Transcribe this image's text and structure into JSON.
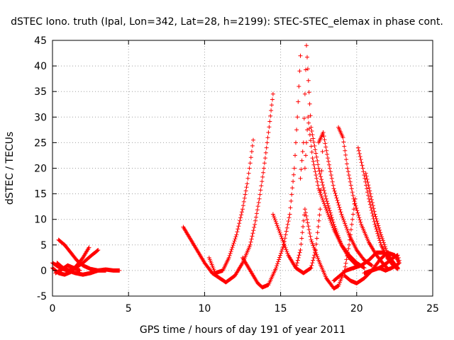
{
  "chart_data": {
    "type": "scatter",
    "title": "dSTEC Iono. truth (Ipal, Lon=342, Lat=28, h=2199): STEC-STEC_elemax in phase cont.",
    "xlabel": "GPS time / hours of day 191 of year 2011",
    "ylabel": "dSTEC  / TECUs",
    "xlim": [
      0,
      25
    ],
    "ylim": [
      -5,
      45
    ],
    "xticks": [
      0,
      5,
      10,
      15,
      20,
      25
    ],
    "yticks": [
      -5,
      0,
      5,
      10,
      15,
      20,
      25,
      30,
      35,
      40,
      45
    ],
    "grid": true,
    "marker": "+",
    "series_color": "#ff0000",
    "series": [
      {
        "x": [
          0.0,
          0.5,
          1.0,
          1.5,
          2.0,
          2.5,
          3.0,
          3.5,
          4.0,
          4.4
        ],
        "y": [
          1.5,
          0.5,
          0.0,
          -0.5,
          -0.8,
          -0.5,
          0.0,
          0.2,
          0.0,
          0.0
        ]
      },
      {
        "x": [
          0.0,
          0.4,
          0.8,
          1.2,
          1.6,
          2.0,
          2.4
        ],
        "y": [
          0.5,
          -0.5,
          -0.8,
          -0.3,
          1.0,
          2.5,
          4.5
        ]
      },
      {
        "x": [
          0.4,
          0.8,
          1.2,
          1.6,
          2.0,
          2.5,
          3.0,
          3.5
        ],
        "y": [
          6.0,
          5.0,
          3.5,
          2.0,
          1.0,
          0.3,
          0.0,
          0.0
        ]
      },
      {
        "x": [
          0.3,
          0.7,
          1.1,
          1.5,
          2.0,
          2.5,
          3.0
        ],
        "y": [
          1.5,
          0.5,
          0.0,
          0.5,
          1.5,
          2.8,
          4.0
        ]
      },
      {
        "x": [
          0.2,
          0.6,
          1.0,
          1.4,
          1.8
        ],
        "y": [
          -0.5,
          0.2,
          1.0,
          0.5,
          0.0
        ]
      },
      {
        "x": [
          8.6,
          9.0,
          9.5,
          10.0,
          10.5,
          11.0,
          11.4,
          12.0,
          12.5,
          13.0,
          13.3,
          13.6,
          13.9,
          14.2,
          14.5
        ],
        "y": [
          8.5,
          6.5,
          4.0,
          1.5,
          -0.5,
          -1.5,
          -2.3,
          -1.0,
          1.5,
          5.0,
          9.0,
          14.0,
          20.0,
          27.0,
          34.5
        ]
      },
      {
        "x": [
          10.3,
          10.7,
          11.2,
          11.6,
          12.1,
          12.5,
          12.8,
          13.0,
          13.2
        ],
        "y": [
          2.5,
          -0.5,
          0.0,
          2.5,
          7.0,
          12.0,
          17.0,
          21.0,
          25.5
        ]
      },
      {
        "x": [
          12.5,
          13.0,
          13.5,
          13.8,
          14.2,
          14.7,
          15.2,
          15.6,
          15.9,
          16.1,
          16.3
        ],
        "y": [
          2.5,
          0.0,
          -2.5,
          -3.3,
          -2.8,
          0.5,
          5.0,
          11.0,
          20.0,
          30.0,
          42.0
        ]
      },
      {
        "x": [
          14.5,
          15.0,
          15.5,
          16.0,
          16.5,
          17.0,
          17.3,
          17.6,
          17.8
        ],
        "y": [
          11.0,
          7.0,
          3.0,
          0.5,
          -0.5,
          0.5,
          4.0,
          12.0,
          27.0
        ]
      },
      {
        "x": [
          16.0,
          16.3,
          16.6,
          17.0,
          17.5,
          18.0,
          18.5,
          18.8,
          19.2,
          19.5,
          19.9
        ],
        "y": [
          0.5,
          4.0,
          12.0,
          6.0,
          2.0,
          -1.5,
          -3.5,
          -3.0,
          0.0,
          5.0,
          14.0
        ]
      },
      {
        "x": [
          16.3,
          16.5,
          16.7,
          17.0,
          17.5,
          18.0,
          18.5,
          19.0,
          19.5,
          20.0
        ],
        "y": [
          18.0,
          25.0,
          44.0,
          28.0,
          20.0,
          14.0,
          9.0,
          5.0,
          2.5,
          1.0
        ]
      },
      {
        "x": [
          16.6,
          16.8,
          17.1,
          17.5,
          18.0,
          18.5,
          19.0,
          19.5,
          20.0,
          20.5
        ],
        "y": [
          20.0,
          30.0,
          22.0,
          16.0,
          12.0,
          8.0,
          5.0,
          3.0,
          1.5,
          0.5
        ]
      },
      {
        "x": [
          17.5,
          17.8,
          18.1,
          18.5,
          19.0,
          19.5,
          20.0,
          20.5,
          21.0
        ],
        "y": [
          25.0,
          27.0,
          22.0,
          16.0,
          11.0,
          7.0,
          4.0,
          2.0,
          1.0
        ]
      },
      {
        "x": [
          18.8,
          19.1,
          19.4,
          19.8,
          20.3,
          20.8,
          21.3,
          21.7,
          22.0
        ],
        "y": [
          28.0,
          26.0,
          20.0,
          14.0,
          9.0,
          5.5,
          3.0,
          1.5,
          0.5
        ]
      },
      {
        "x": [
          18.5,
          18.9,
          19.3,
          19.8,
          20.3,
          20.8,
          21.3,
          21.8,
          22.3,
          22.7
        ],
        "y": [
          -2.0,
          -1.0,
          0.0,
          0.5,
          1.0,
          2.0,
          3.5,
          3.5,
          2.0,
          0.5
        ]
      },
      {
        "x": [
          19.2,
          19.6,
          20.0,
          20.5,
          21.0,
          21.5,
          22.0,
          22.5,
          22.8
        ],
        "y": [
          -1.0,
          -2.0,
          -2.5,
          -1.5,
          0.0,
          2.0,
          3.5,
          3.0,
          1.5
        ]
      },
      {
        "x": [
          20.1,
          20.4,
          20.8,
          21.2,
          21.6,
          22.0,
          22.4,
          22.7
        ],
        "y": [
          24.0,
          20.0,
          14.0,
          9.0,
          5.0,
          2.5,
          1.0,
          0.3
        ]
      },
      {
        "x": [
          20.6,
          20.9,
          21.2,
          21.6,
          22.0,
          22.4,
          22.7
        ],
        "y": [
          19.0,
          15.0,
          11.0,
          7.0,
          3.5,
          1.5,
          0.5
        ]
      },
      {
        "x": [
          20.5,
          21.0,
          21.5,
          22.0,
          22.4,
          22.7,
          22.8
        ],
        "y": [
          -0.5,
          0.0,
          0.5,
          1.5,
          2.5,
          3.0,
          2.0
        ]
      },
      {
        "x": [
          21.5,
          21.9,
          22.3,
          22.6,
          22.8
        ],
        "y": [
          0.5,
          0.0,
          0.5,
          1.0,
          1.5
        ]
      }
    ]
  }
}
